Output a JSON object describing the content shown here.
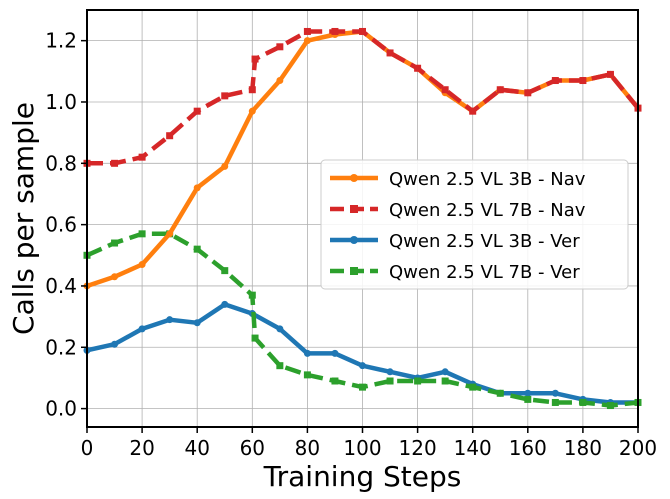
{
  "chart_data": {
    "type": "line",
    "title": "",
    "xlabel": "Training Steps",
    "ylabel": "Calls per sample",
    "xlim": [
      0,
      200
    ],
    "ylim": [
      -0.06,
      1.3
    ],
    "xticks": [
      0,
      20,
      40,
      60,
      80,
      100,
      120,
      140,
      160,
      180,
      200
    ],
    "yticks": [
      0.0,
      0.2,
      0.4,
      0.6,
      0.8,
      1.0,
      1.2
    ],
    "ytick_labels": [
      "0.0",
      "0.2",
      "0.4",
      "0.6",
      "0.8",
      "1.0",
      "1.2"
    ],
    "grid": true,
    "legend_position": "center-right",
    "series": [
      {
        "name": "Qwen 2.5 VL 3B - Nav",
        "color": "#ff7f0e",
        "style": "solid",
        "marker": "circle",
        "x": [
          0,
          10,
          20,
          30,
          40,
          50,
          60,
          70,
          80,
          90,
          100,
          110,
          120,
          130,
          140,
          150,
          160,
          170,
          180,
          190,
          200
        ],
        "y": [
          0.4,
          0.43,
          0.47,
          0.57,
          0.72,
          0.79,
          0.97,
          1.07,
          1.2,
          1.22,
          1.23,
          1.16,
          1.11,
          1.03,
          0.97,
          1.04,
          1.03,
          1.07,
          1.07,
          1.09,
          0.98
        ]
      },
      {
        "name": "Qwen 2.5 VL 7B - Nav",
        "color": "#d62728",
        "style": "dashed",
        "marker": "square",
        "x": [
          0,
          10,
          20,
          30,
          40,
          50,
          60,
          61,
          70,
          80,
          90,
          100,
          110,
          120,
          130,
          140,
          150,
          160,
          170,
          180,
          190,
          200
        ],
        "y": [
          0.8,
          0.8,
          0.82,
          0.89,
          0.97,
          1.02,
          1.04,
          1.14,
          1.18,
          1.23,
          1.23,
          1.23,
          1.16,
          1.11,
          1.04,
          0.97,
          1.04,
          1.03,
          1.07,
          1.07,
          1.09,
          0.98
        ]
      },
      {
        "name": "Qwen 2.5 VL 3B - Ver",
        "color": "#1f77b4",
        "style": "solid",
        "marker": "circle",
        "x": [
          0,
          10,
          20,
          30,
          40,
          50,
          60,
          70,
          80,
          90,
          100,
          110,
          120,
          130,
          140,
          150,
          160,
          170,
          180,
          190,
          200
        ],
        "y": [
          0.19,
          0.21,
          0.26,
          0.29,
          0.28,
          0.34,
          0.31,
          0.26,
          0.18,
          0.18,
          0.14,
          0.12,
          0.1,
          0.12,
          0.08,
          0.05,
          0.05,
          0.05,
          0.03,
          0.02,
          0.02
        ]
      },
      {
        "name": "Qwen 2.5 VL 7B - Ver",
        "color": "#2ca02c",
        "style": "dashed",
        "marker": "square",
        "x": [
          0,
          10,
          20,
          30,
          40,
          50,
          60,
          61,
          70,
          80,
          90,
          100,
          110,
          120,
          130,
          140,
          150,
          160,
          170,
          180,
          190,
          200
        ],
        "y": [
          0.5,
          0.54,
          0.57,
          0.57,
          0.52,
          0.45,
          0.37,
          0.23,
          0.14,
          0.11,
          0.09,
          0.07,
          0.09,
          0.09,
          0.09,
          0.07,
          0.05,
          0.03,
          0.02,
          0.02,
          0.01,
          0.02
        ]
      }
    ]
  }
}
